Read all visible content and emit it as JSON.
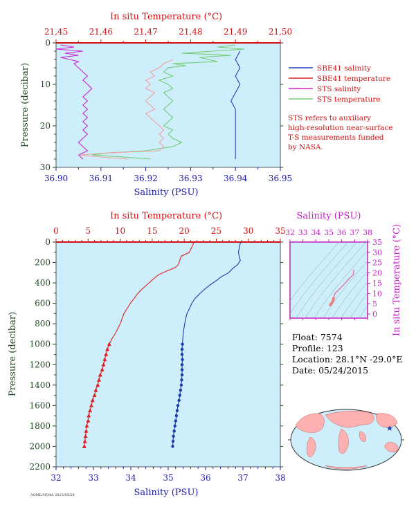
{
  "colors": {
    "plot_bg": "#cdeefa",
    "salinity_axis": "#1a1aa8",
    "temperature_axis": "#d01010",
    "pressure_axis": "#1f4a1f",
    "sbe_salinity": "#2040c0",
    "sbe_temperature": "#e02020",
    "sts_salinity": "#d020d0",
    "sts_temperature": "#70cc70",
    "sts_temperature_light": "#f0a0a0",
    "ts_axis": "#c020c0"
  },
  "float_info": {
    "float": "Float:  7574",
    "profile": "Profile:  123",
    "location": "Location:  28.1°N  -29.0°E",
    "date": "Date:  05/24/2015"
  },
  "footnote": "STS refers to auxiliary\nhigh-resolution near-surface\nT-S measurements funded\nby NASA.",
  "footer_tiny": "AOML/NOAA 2015/05/24",
  "chart_data": [
    {
      "type": "line",
      "id": "near-surface",
      "xlabel": "Salinity (PSU)",
      "x2label": "In situ Temperature (°C)",
      "ylabel": "Pressure (decibar)",
      "xlim": [
        36.9,
        36.95
      ],
      "x2lim": [
        21.45,
        21.5
      ],
      "ylim": [
        30,
        0
      ],
      "xticks": [
        "36.90",
        "36.91",
        "36.92",
        "36.93",
        "36.94",
        "36.95"
      ],
      "x2ticks": [
        "21,45",
        "21,46",
        "21,47",
        "21,48",
        "21,49",
        "21,50"
      ],
      "yticks": [
        "0",
        "10",
        "20",
        "30"
      ],
      "legend": [
        {
          "name": "SBE41 salinity",
          "color": "#2040c0"
        },
        {
          "name": "SBE41 temperature",
          "color": "#e02020"
        },
        {
          "name": "STS salinity",
          "color": "#d020d0"
        },
        {
          "name": "STS temperature",
          "color": "#70cc70"
        }
      ],
      "series": [
        {
          "name": "SBE41 salinity",
          "axis": "x",
          "color": "#2040c0",
          "p": [
            2,
            4,
            6,
            8,
            10,
            12,
            14,
            16,
            18,
            20,
            22,
            24,
            26,
            28
          ],
          "v": [
            36.941,
            36.94,
            36.941,
            36.94,
            36.941,
            36.94,
            36.939,
            36.94,
            36.94,
            36.94,
            36.94,
            36.94,
            36.94,
            36.94
          ]
        },
        {
          "name": "STS salinity",
          "axis": "x",
          "color": "#d020d0",
          "p": [
            0.5,
            1,
            1.5,
            2,
            2.5,
            3,
            3.5,
            4,
            4.5,
            5,
            6,
            7,
            8,
            9,
            10,
            11,
            12,
            13,
            14,
            15,
            16,
            17,
            18,
            19,
            20,
            21,
            22,
            23,
            24,
            25,
            26,
            27,
            28
          ],
          "v": [
            36.901,
            36.904,
            36.9,
            36.906,
            36.902,
            36.905,
            36.901,
            36.903,
            36.905,
            36.904,
            36.905,
            36.906,
            36.907,
            36.906,
            36.907,
            36.908,
            36.907,
            36.906,
            36.907,
            36.906,
            36.907,
            36.906,
            36.907,
            36.906,
            36.907,
            36.906,
            36.907,
            36.906,
            36.905,
            36.906,
            36.907,
            36.905,
            36.906
          ]
        },
        {
          "name": "STS temperature",
          "axis": "x2",
          "color": "#70cc70",
          "p": [
            0.5,
            1,
            1.5,
            2,
            2.5,
            3,
            3.5,
            4,
            4.5,
            5,
            5.5,
            6,
            7,
            8,
            9,
            10,
            11,
            12,
            13,
            14,
            15,
            16,
            17,
            18,
            19,
            20,
            21,
            22,
            23,
            24,
            25,
            26,
            26.5,
            27,
            27.5,
            28
          ],
          "v": [
            21.49,
            21.486,
            21.492,
            21.485,
            21.478,
            21.489,
            21.482,
            21.484,
            21.486,
            21.476,
            21.479,
            21.475,
            21.474,
            21.476,
            21.473,
            21.475,
            21.476,
            21.474,
            21.475,
            21.476,
            21.475,
            21.474,
            21.475,
            21.476,
            21.475,
            21.474,
            21.476,
            21.475,
            21.476,
            21.478,
            21.476,
            21.47,
            21.462,
            21.458,
            21.465,
            21.471
          ]
        },
        {
          "name": "SBE41 temperature",
          "axis": "x2",
          "color": "#f0a0a0",
          "p": [
            4,
            5,
            6,
            7,
            8,
            9,
            10,
            11,
            12,
            13,
            14,
            15,
            16,
            17,
            18,
            19,
            20,
            21,
            22,
            23,
            24,
            25,
            26,
            26.5,
            27,
            27.5,
            28
          ],
          "v": [
            21.476,
            21.474,
            21.473,
            21.471,
            21.472,
            21.47,
            21.471,
            21.47,
            21.472,
            21.471,
            21.47,
            21.471,
            21.472,
            21.47,
            21.471,
            21.472,
            21.473,
            21.474,
            21.473,
            21.474,
            21.473,
            21.474,
            21.473,
            21.462,
            21.455,
            21.46,
            21.466
          ]
        }
      ]
    },
    {
      "type": "line",
      "id": "full-profile",
      "xlabel": "Salinity (PSU)",
      "x2label": "In situ Temperature (°C)",
      "ylabel": "Pressure (decibar)",
      "xlim": [
        32,
        38
      ],
      "x2lim": [
        0,
        35
      ],
      "ylim": [
        2200,
        0
      ],
      "xticks": [
        "32",
        "33",
        "34",
        "35",
        "36",
        "37",
        "38"
      ],
      "x2ticks": [
        "0",
        "5",
        "10",
        "15",
        "20",
        "25",
        "30",
        "35"
      ],
      "yticks": [
        "0",
        "200",
        "400",
        "600",
        "800",
        "1000",
        "1200",
        "1400",
        "1600",
        "1800",
        "2000",
        "2200"
      ],
      "series": [
        {
          "name": "Temperature",
          "axis": "x2",
          "color": "#e02020",
          "p": [
            0,
            20,
            60,
            100,
            140,
            180,
            220,
            250,
            280,
            320,
            360,
            400,
            450,
            500,
            550,
            600,
            650,
            700,
            750,
            800,
            850,
            900,
            950,
            1000,
            1050,
            1100,
            1150,
            1200,
            1250,
            1300,
            1350,
            1400,
            1450,
            1500,
            1550,
            1600,
            1650,
            1700,
            1750,
            1800,
            1850,
            1900,
            1950,
            2000
          ],
          "v": [
            21.5,
            21.4,
            21.1,
            20.8,
            19.5,
            19.3,
            19.1,
            18.6,
            17.4,
            16.0,
            15.2,
            14.5,
            13.6,
            12.8,
            12.2,
            11.6,
            11.1,
            10.6,
            10.3,
            10.0,
            9.6,
            9.2,
            8.7,
            8.3,
            8.0,
            7.8,
            7.6,
            7.4,
            7.2,
            6.9,
            6.7,
            6.5,
            6.2,
            6.0,
            5.7,
            5.5,
            5.3,
            5.1,
            5.0,
            4.8,
            4.7,
            4.6,
            4.5,
            4.4
          ],
          "marker_from": 1000
        },
        {
          "name": "Salinity",
          "axis": "x",
          "color": "#1a3ab0",
          "p": [
            0,
            20,
            60,
            100,
            140,
            180,
            220,
            260,
            300,
            340,
            380,
            420,
            460,
            500,
            550,
            600,
            650,
            700,
            750,
            800,
            850,
            900,
            950,
            1000,
            1050,
            1100,
            1150,
            1200,
            1250,
            1300,
            1350,
            1400,
            1450,
            1500,
            1550,
            1600,
            1650,
            1700,
            1750,
            1800,
            1850,
            1900,
            1950,
            2000
          ],
          "v": [
            36.94,
            36.92,
            36.9,
            36.88,
            36.9,
            36.93,
            36.86,
            36.72,
            36.62,
            36.42,
            36.28,
            36.12,
            35.98,
            35.86,
            35.72,
            35.63,
            35.57,
            35.5,
            35.47,
            35.44,
            35.42,
            35.4,
            35.39,
            35.38,
            35.37,
            35.37,
            35.38,
            35.37,
            35.37,
            35.37,
            35.36,
            35.35,
            35.33,
            35.31,
            35.29,
            35.26,
            35.24,
            35.22,
            35.2,
            35.18,
            35.16,
            35.14,
            35.13,
            35.12
          ],
          "marker_from": 1000
        }
      ]
    },
    {
      "type": "scatter",
      "id": "ts-diagram",
      "xlabel": "Salinity (PSU)",
      "ylabel": "In situ Temperature (°C)",
      "xlim": [
        32,
        38
      ],
      "ylim": [
        -2,
        35
      ],
      "xticks": [
        "32",
        "33",
        "34",
        "35",
        "36",
        "37",
        "38"
      ],
      "yticks": [
        "0",
        "5",
        "10",
        "15",
        "20",
        "25",
        "30",
        "35"
      ],
      "series": [
        {
          "name": "T-S",
          "color": "#e02020",
          "s": [
            36.94,
            36.9,
            36.6,
            36.2,
            35.9,
            35.7,
            35.5,
            35.4,
            35.37,
            35.33,
            35.25,
            35.18,
            35.12
          ],
          "t": [
            21.5,
            19.2,
            17.4,
            14.5,
            12.6,
            11.4,
            10.1,
            8.6,
            7.6,
            6.6,
            5.6,
            4.8,
            4.4
          ]
        }
      ]
    }
  ]
}
